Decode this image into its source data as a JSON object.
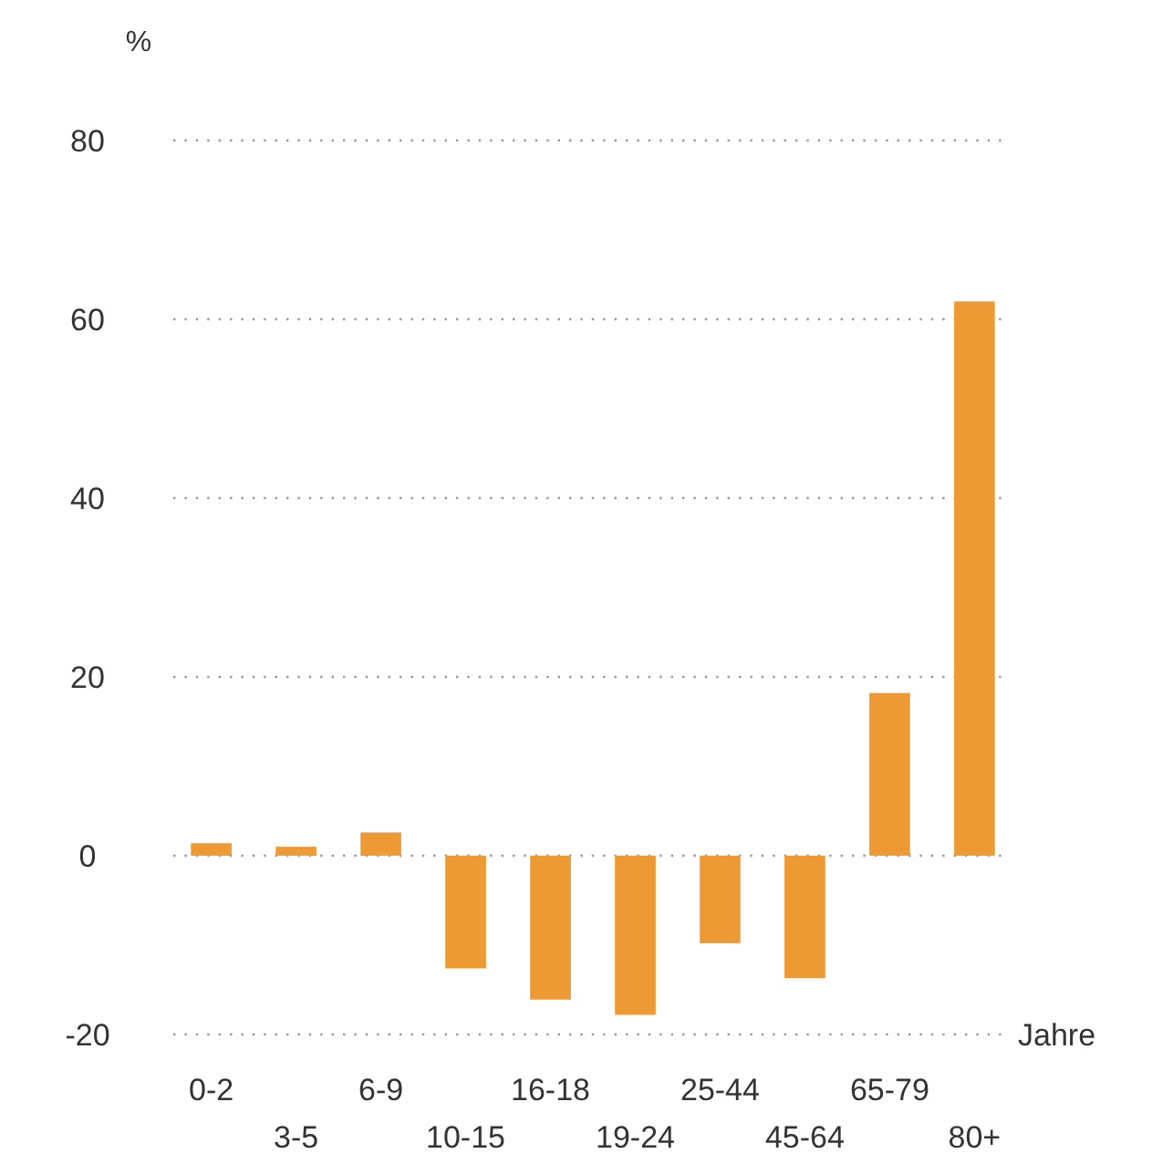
{
  "chart_data": {
    "type": "bar",
    "ylabel": "%",
    "xlabel": "Jahre",
    "categories": [
      "0-2",
      "3-5",
      "6-9",
      "10-15",
      "16-18",
      "19-24",
      "25-44",
      "45-64",
      "65-79",
      "80+"
    ],
    "values": [
      1.4,
      1.0,
      2.6,
      -12.6,
      -16.1,
      -17.8,
      -9.8,
      -13.7,
      18.2,
      62.0
    ],
    "color": "#ee9a34",
    "ylim": [
      -20,
      80
    ],
    "yticks": [
      -20,
      0,
      20,
      40,
      60,
      80
    ],
    "grid": "y"
  }
}
